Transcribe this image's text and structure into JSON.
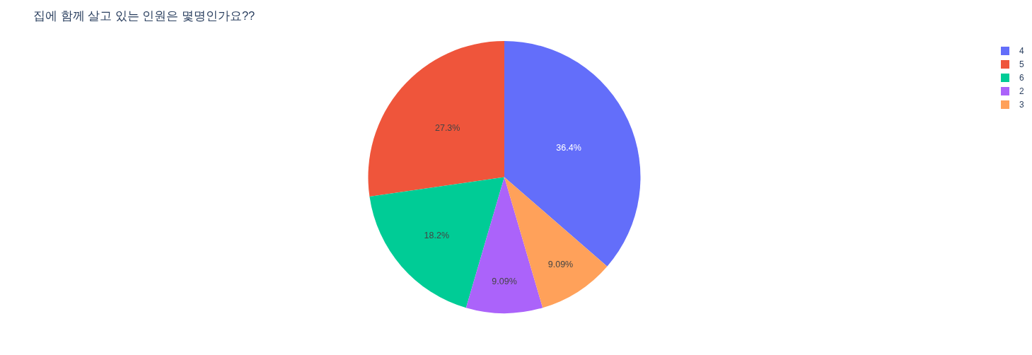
{
  "chart_data": {
    "type": "pie",
    "title": "집에 함께 살고 있는 인원은 몇명인가요??",
    "categories": [
      "4",
      "5",
      "6",
      "2",
      "3"
    ],
    "values": [
      36.4,
      27.3,
      18.2,
      9.09,
      9.09
    ],
    "colors": [
      "#636efa",
      "#ef553b",
      "#00cc96",
      "#ab63fa",
      "#ffa15a"
    ],
    "value_labels": [
      "36.4%",
      "27.3%",
      "18.2%",
      "9.09%",
      "9.09%"
    ],
    "legend": "top right"
  }
}
